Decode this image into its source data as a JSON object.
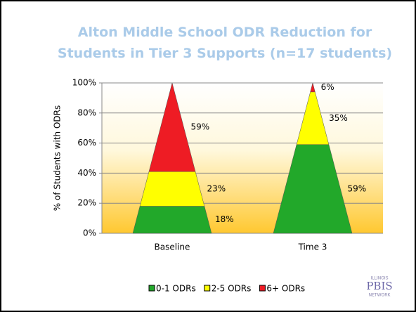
{
  "chart_data": {
    "type": "pyramid",
    "title": "Alton Middle School ODR Reduction for Students in Tier 3 Supports (n=17 students)",
    "y_label": "% of Students with ODRs",
    "categories": [
      "Baseline",
      "Time 3"
    ],
    "series": [
      {
        "name": "0-1 ODRs",
        "color": "#22a82a",
        "values": [
          18,
          59
        ],
        "value_labels": [
          "18%",
          "59%"
        ]
      },
      {
        "name": "2-5 ODRs",
        "color": "#ffff00",
        "values": [
          23,
          35
        ],
        "value_labels": [
          "23%",
          "35%"
        ]
      },
      {
        "name": "6+ ODRs",
        "color": "#ee1c24",
        "values": [
          59,
          6
        ],
        "value_labels": [
          "59%",
          "6%"
        ]
      }
    ],
    "ylim": [
      0,
      100
    ],
    "yticks": [
      {
        "value": 0,
        "label": "0%"
      },
      {
        "value": 20,
        "label": "20%"
      },
      {
        "value": 40,
        "label": "40%"
      },
      {
        "value": 60,
        "label": "60%"
      },
      {
        "value": 80,
        "label": "80%"
      },
      {
        "value": 100,
        "label": "100%"
      }
    ],
    "grid": true,
    "legend": "bottom"
  },
  "logo": [
    "ILLINOIS",
    "PBIS",
    "NETWORK"
  ]
}
